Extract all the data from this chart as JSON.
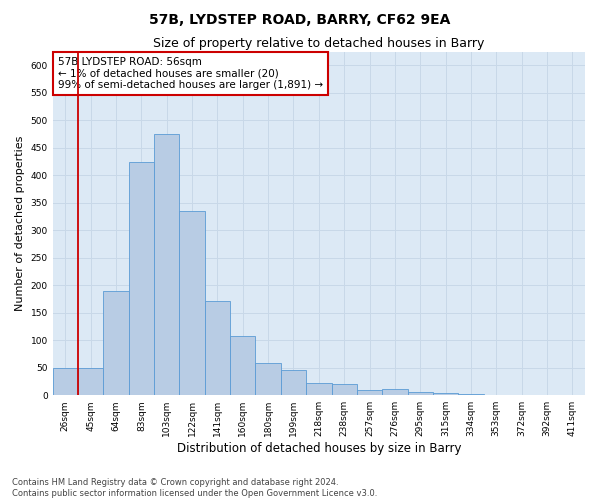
{
  "title": "57B, LYDSTEP ROAD, BARRY, CF62 9EA",
  "subtitle": "Size of property relative to detached houses in Barry",
  "xlabel": "Distribution of detached houses by size in Barry",
  "ylabel": "Number of detached properties",
  "footer_line1": "Contains HM Land Registry data © Crown copyright and database right 2024.",
  "footer_line2": "Contains public sector information licensed under the Open Government Licence v3.0.",
  "categories": [
    "26sqm",
    "45sqm",
    "64sqm",
    "83sqm",
    "103sqm",
    "122sqm",
    "141sqm",
    "160sqm",
    "180sqm",
    "199sqm",
    "218sqm",
    "238sqm",
    "257sqm",
    "276sqm",
    "295sqm",
    "315sqm",
    "334sqm",
    "353sqm",
    "372sqm",
    "392sqm",
    "411sqm"
  ],
  "values": [
    50,
    50,
    190,
    425,
    475,
    335,
    172,
    108,
    58,
    45,
    22,
    21,
    10,
    12,
    5,
    4,
    2,
    0,
    1,
    0,
    1
  ],
  "bar_color": "#b8cce4",
  "bar_edge_color": "#5b9bd5",
  "grid_color": "#c8d8e8",
  "background_color": "#dce9f5",
  "vline_x": 0.5,
  "vline_color": "#cc0000",
  "annotation_text": "57B LYDSTEP ROAD: 56sqm\n← 1% of detached houses are smaller (20)\n99% of semi-detached houses are larger (1,891) →",
  "annotation_box_color": "#cc0000",
  "ylim": [
    0,
    625
  ],
  "yticks": [
    0,
    50,
    100,
    150,
    200,
    250,
    300,
    350,
    400,
    450,
    500,
    550,
    600
  ],
  "title_fontsize": 10,
  "subtitle_fontsize": 9,
  "tick_fontsize": 6.5,
  "ylabel_fontsize": 8,
  "xlabel_fontsize": 8.5,
  "annotation_fontsize": 7.5,
  "footer_fontsize": 6
}
